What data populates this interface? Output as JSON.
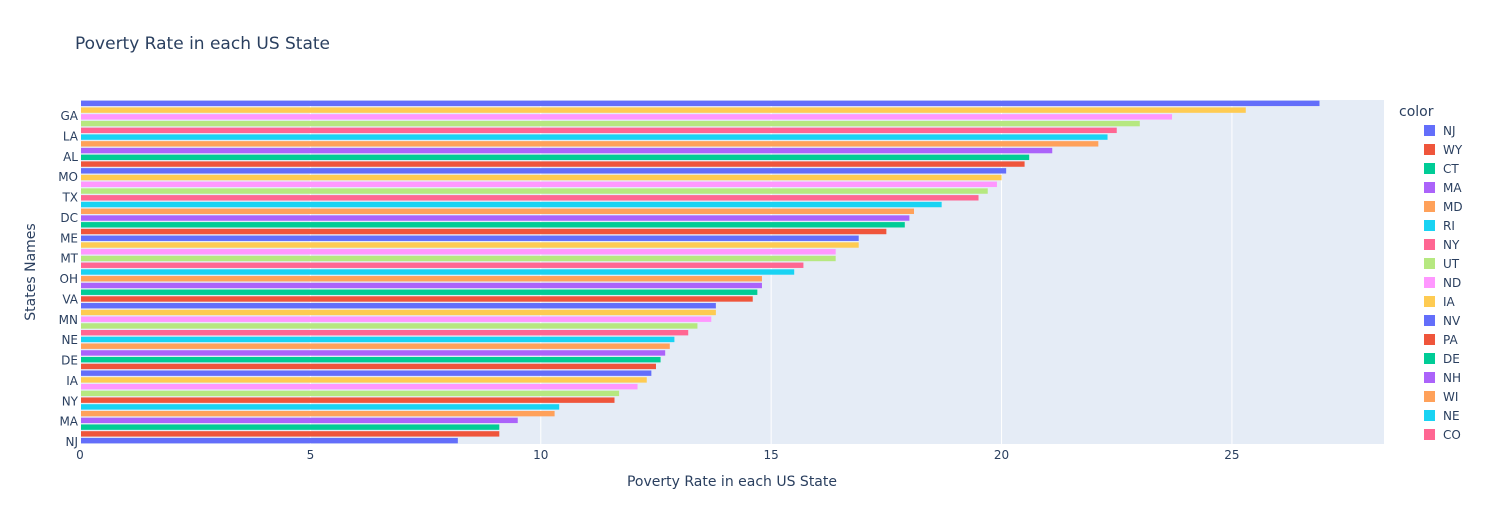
{
  "chart_data": {
    "type": "bar",
    "orientation": "horizontal",
    "title": "Poverty Rate in each US State",
    "xlabel": "Poverty Rate in each US State",
    "ylabel": "States Names",
    "xlim": [
      0,
      28.3
    ],
    "xticks": [
      0,
      5,
      10,
      15,
      20,
      25
    ],
    "yticks": [
      "GA",
      "LA",
      "AL",
      "MO",
      "TX",
      "DC",
      "ME",
      "MT",
      "OH",
      "VA",
      "MN",
      "NE",
      "DE",
      "IA",
      "NY",
      "MA",
      "NJ"
    ],
    "legend_title": "color",
    "legend": [
      "NJ",
      "WY",
      "CT",
      "MA",
      "MD",
      "RI",
      "NY",
      "UT",
      "ND",
      "IA",
      "NV",
      "PA",
      "DE",
      "NH",
      "WI",
      "NE",
      "CO"
    ],
    "grid": true,
    "legend_position": "right",
    "colors": [
      "#636efa",
      "#EF553B",
      "#00cc96",
      "#ab63fa",
      "#FFA15A",
      "#19d3f3",
      "#FF6692",
      "#B6E880",
      "#FF97FF",
      "#FECB52"
    ],
    "bars": [
      {
        "value": 26.9,
        "color": "#636efa"
      },
      {
        "value": 25.3,
        "color": "#FECB52"
      },
      {
        "value": 23.7,
        "color": "#FF97FF"
      },
      {
        "value": 23.0,
        "color": "#B6E880"
      },
      {
        "value": 22.5,
        "color": "#FF6692"
      },
      {
        "value": 22.3,
        "color": "#19d3f3"
      },
      {
        "value": 22.1,
        "color": "#FFA15A"
      },
      {
        "value": 21.1,
        "color": "#ab63fa"
      },
      {
        "value": 20.6,
        "color": "#00cc96"
      },
      {
        "value": 20.5,
        "color": "#EF553B"
      },
      {
        "value": 20.1,
        "color": "#636efa"
      },
      {
        "value": 20.0,
        "color": "#FECB52"
      },
      {
        "value": 19.9,
        "color": "#FF97FF"
      },
      {
        "value": 19.7,
        "color": "#B6E880"
      },
      {
        "value": 19.5,
        "color": "#FF6692"
      },
      {
        "value": 18.7,
        "color": "#19d3f3"
      },
      {
        "value": 18.1,
        "color": "#FFA15A"
      },
      {
        "value": 18.0,
        "color": "#ab63fa"
      },
      {
        "value": 17.9,
        "color": "#00cc96"
      },
      {
        "value": 17.5,
        "color": "#EF553B"
      },
      {
        "value": 16.9,
        "color": "#636efa"
      },
      {
        "value": 16.9,
        "color": "#FECB52"
      },
      {
        "value": 16.4,
        "color": "#FF97FF"
      },
      {
        "value": 16.4,
        "color": "#B6E880"
      },
      {
        "value": 15.7,
        "color": "#FF6692"
      },
      {
        "value": 15.5,
        "color": "#19d3f3"
      },
      {
        "value": 14.8,
        "color": "#FFA15A"
      },
      {
        "value": 14.8,
        "color": "#ab63fa"
      },
      {
        "value": 14.7,
        "color": "#00cc96"
      },
      {
        "value": 14.6,
        "color": "#EF553B"
      },
      {
        "value": 13.8,
        "color": "#636efa"
      },
      {
        "value": 13.8,
        "color": "#FECB52"
      },
      {
        "value": 13.7,
        "color": "#FF97FF"
      },
      {
        "value": 13.4,
        "color": "#B6E880"
      },
      {
        "value": 13.2,
        "color": "#FF6692"
      },
      {
        "value": 12.9,
        "color": "#19d3f3"
      },
      {
        "value": 12.8,
        "color": "#FFA15A"
      },
      {
        "value": 12.7,
        "color": "#ab63fa"
      },
      {
        "value": 12.6,
        "color": "#00cc96"
      },
      {
        "value": 12.5,
        "color": "#EF553B"
      },
      {
        "value": 12.4,
        "color": "#636efa"
      },
      {
        "value": 12.3,
        "color": "#FECB52"
      },
      {
        "value": 12.1,
        "color": "#FF97FF"
      },
      {
        "value": 11.7,
        "color": "#B6E880"
      },
      {
        "value": 11.6,
        "color": "#EF553B"
      },
      {
        "value": 10.4,
        "color": "#19d3f3"
      },
      {
        "value": 10.3,
        "color": "#FFA15A"
      },
      {
        "value": 9.5,
        "color": "#ab63fa"
      },
      {
        "value": 9.1,
        "color": "#00cc96"
      },
      {
        "value": 9.1,
        "color": "#EF553B"
      },
      {
        "value": 8.2,
        "color": "#636efa"
      }
    ]
  },
  "legend_colors": [
    "#636efa",
    "#EF553B",
    "#00cc96",
    "#ab63fa",
    "#FFA15A",
    "#19d3f3",
    "#FF6692",
    "#B6E880",
    "#FF97FF",
    "#FECB52",
    "#636efa",
    "#EF553B",
    "#00cc96",
    "#ab63fa",
    "#FFA15A",
    "#19d3f3",
    "#FF6692"
  ]
}
